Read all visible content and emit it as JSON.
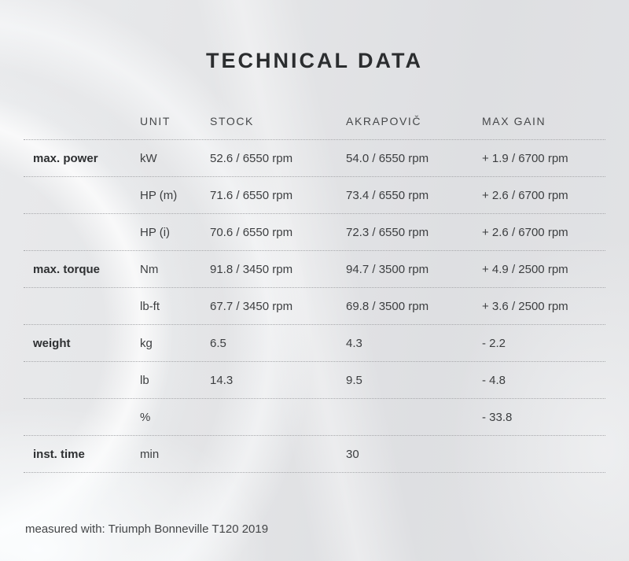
{
  "page": {
    "title": "TECHNICAL DATA",
    "footnote": "measured with: Triumph Bonneville T120 2019"
  },
  "table": {
    "columns": [
      "",
      "UNIT",
      "STOCK",
      "AKRAPOVIČ",
      "MAX GAIN"
    ],
    "rows": [
      {
        "label": "max. power",
        "unit": "kW",
        "stock": "52.6 / 6550 rpm",
        "akrapovic": "54.0 / 6550 rpm",
        "max_gain": "+ 1.9 / 6700 rpm"
      },
      {
        "label": "",
        "unit": "HP (m)",
        "stock": "71.6 / 6550 rpm",
        "akrapovic": "73.4 / 6550 rpm",
        "max_gain": "+ 2.6 / 6700 rpm"
      },
      {
        "label": "",
        "unit": "HP (i)",
        "stock": "70.6 / 6550 rpm",
        "akrapovic": "72.3 / 6550 rpm",
        "max_gain": "+ 2.6 / 6700 rpm"
      },
      {
        "label": "max. torque",
        "unit": "Nm",
        "stock": "91.8 / 3450 rpm",
        "akrapovic": "94.7 / 3500 rpm",
        "max_gain": "+ 4.9 / 2500 rpm"
      },
      {
        "label": "",
        "unit": "lb-ft",
        "stock": "67.7 / 3450 rpm",
        "akrapovic": "69.8 / 3500 rpm",
        "max_gain": "+ 3.6 / 2500 rpm"
      },
      {
        "label": "weight",
        "unit": "kg",
        "stock": "6.5",
        "akrapovic": "4.3",
        "max_gain": "- 2.2"
      },
      {
        "label": "",
        "unit": "lb",
        "stock": "14.3",
        "akrapovic": "9.5",
        "max_gain": "- 4.8"
      },
      {
        "label": "",
        "unit": "%",
        "stock": "",
        "akrapovic": "",
        "max_gain": "- 33.8"
      },
      {
        "label": "inst. time",
        "unit": "min",
        "stock": "",
        "akrapovic": "30",
        "max_gain": ""
      }
    ]
  },
  "chart_data": {
    "type": "table",
    "title": "TECHNICAL DATA",
    "columns": [
      "",
      "UNIT",
      "STOCK",
      "AKRAPOVIČ",
      "MAX GAIN"
    ],
    "rows": [
      [
        "max. power",
        "kW",
        "52.6 / 6550 rpm",
        "54.0 / 6550 rpm",
        "+ 1.9 / 6700 rpm"
      ],
      [
        "",
        "HP (m)",
        "71.6 / 6550 rpm",
        "73.4 / 6550 rpm",
        "+ 2.6 / 6700 rpm"
      ],
      [
        "",
        "HP (i)",
        "70.6 / 6550 rpm",
        "72.3 / 6550 rpm",
        "+ 2.6 / 6700 rpm"
      ],
      [
        "max. torque",
        "Nm",
        "91.8 / 3450 rpm",
        "94.7 / 3500 rpm",
        "+ 4.9 / 2500 rpm"
      ],
      [
        "",
        "lb-ft",
        "67.7 / 3450 rpm",
        "69.8 / 3500 rpm",
        "+ 3.6 / 2500 rpm"
      ],
      [
        "weight",
        "kg",
        "6.5",
        "4.3",
        "- 2.2"
      ],
      [
        "",
        "lb",
        "14.3",
        "9.5",
        "- 4.8"
      ],
      [
        "",
        "%",
        "",
        "",
        "- 33.8"
      ],
      [
        "inst. time",
        "min",
        "",
        "30",
        ""
      ]
    ],
    "annotations": [
      "measured with: Triumph Bonneville T120 2019"
    ]
  },
  "colors": {
    "background_base": "#e3e4e6",
    "title_text": "#2b2d2f",
    "header_text": "#46484a",
    "body_text": "#3c3e40",
    "label_text": "#2e3032",
    "divider_dotted": "#a8a9ac"
  }
}
